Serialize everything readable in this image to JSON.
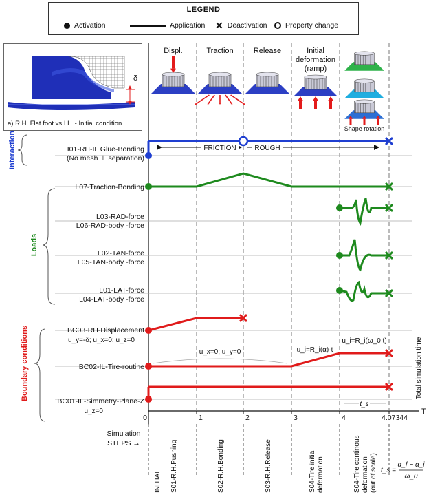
{
  "legend": {
    "title": "LEGEND",
    "items": [
      {
        "symbol": "activation-dot",
        "label": "Activation"
      },
      {
        "symbol": "application-line",
        "label": "Application"
      },
      {
        "symbol": "deactivation-cross",
        "label": "Deactivation"
      },
      {
        "symbol": "property-change-ring",
        "label": "Property change"
      }
    ]
  },
  "inset": {
    "caption": "a) R.H. Flat foot vs I.L. - Initial condition",
    "delta_label": "δ"
  },
  "phase_headers": [
    {
      "lines": [
        "Displ."
      ]
    },
    {
      "lines": [
        "Traction"
      ]
    },
    {
      "lines": [
        "Release"
      ]
    },
    {
      "lines": [
        "Initial",
        "deformation",
        "(ramp)"
      ]
    }
  ],
  "shape_rotation_label": "Shape rotation",
  "groups": {
    "interaction": "Interaction",
    "loads": "Loads",
    "boundary": "Boundary conditions"
  },
  "rows": {
    "i01": [
      "I01-RH-IL Glue-Bonding",
      "(No mesh ⊥ separation)"
    ],
    "l07": [
      "L07-Traction-Bonding"
    ],
    "l03": [
      "L03-RAD-force",
      "L06-RAD-body -force"
    ],
    "l02": [
      "L02-TAN-force",
      "L05-TAN-body -force"
    ],
    "l01": [
      "L01-LAT-force",
      "L04-LAT-body -force"
    ],
    "bc03": [
      "BC03-RH-Displacement"
    ],
    "bc03_cond": "u_y=-δ; u_x=0; u_z=0",
    "bc02": [
      "BC02-IL-Tire-routine"
    ],
    "bc01": [
      "BC01-IL-Simmetry-Plane-Z"
    ],
    "bc01_cond": "u_z=0"
  },
  "annotations": {
    "friction": "FRICTION",
    "rough": "ROUGH",
    "bc02_mid": "u_x=0; u_y=0",
    "bc02_ramp": "u_i=R_i(α)·t",
    "bc02_cont": "u_i=R_i(ω_0 t)",
    "ts_label": "t_s"
  },
  "axis": {
    "ticks": [
      "0",
      "1",
      "2",
      "3",
      "4",
      "4.07344"
    ],
    "t_label": "T",
    "total_label": "Total simulation time"
  },
  "steps": {
    "header_lines": [
      "Simulation",
      "STEPS →"
    ],
    "labels": [
      [
        "INITIAL"
      ],
      [
        "S01-R.H.Pushing"
      ],
      [
        "S02-R.H.Bonding"
      ],
      [
        "S03-R.H.Release"
      ],
      [
        "S04-Tire initial",
        "deformation"
      ],
      [
        "S04-Tire continous",
        "deformation",
        "(out of scale)"
      ]
    ]
  },
  "formula": {
    "lhs": "t_s =",
    "numerator": "α_f − α_i",
    "denominator": "ω_0"
  },
  "colors": {
    "interaction": "#1f3fd1",
    "loads": "#1e8a1e",
    "boundary": "#e01b1b",
    "fem_blue": "#2c3fc4",
    "arrow_red": "#e31b1b",
    "grid": "#888888"
  }
}
